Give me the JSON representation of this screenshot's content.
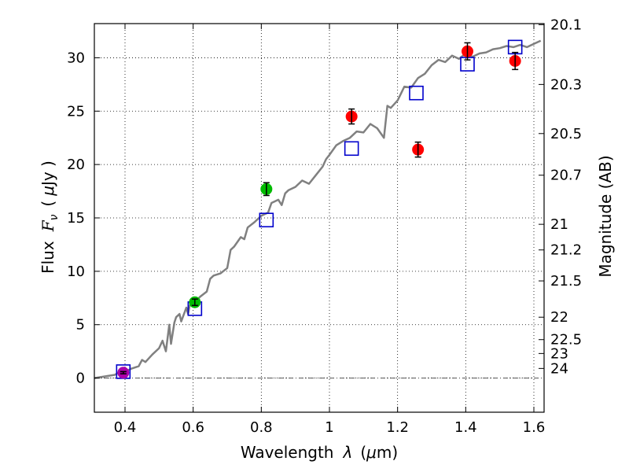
{
  "chart_data": {
    "type": "scatter",
    "title": "",
    "xlabel_prefix": "Wavelength",
    "xlabel_symbol": "λ",
    "xlabel_unit_open": "(",
    "xlabel_unit_mu": "μ",
    "xlabel_unit_rest": "m)",
    "ylabel_prefix": "Flux",
    "ylabel_symbol": "F",
    "ylabel_sub": "ν",
    "ylabel_unit_open": "(",
    "ylabel_unit_mu": "μ",
    "ylabel_unit_rest": "Jy )",
    "y2label": "Magnitude (AB)",
    "xlim": [
      0.31,
      1.63
    ],
    "ylim": [
      -3.2,
      33.2
    ],
    "grid": true,
    "x_ticks": [
      0.4,
      0.6,
      0.8,
      1.0,
      1.2,
      1.4,
      1.6
    ],
    "x_tick_labels": [
      "0.4",
      "0.6",
      "0.8",
      "1",
      "1.2",
      "1.4",
      "1.6"
    ],
    "y_ticks": [
      0,
      5,
      10,
      15,
      20,
      25,
      30
    ],
    "y_tick_labels": [
      "0",
      "5",
      "10",
      "15",
      "20",
      "25",
      "30"
    ],
    "y2_ticks": [
      {
        "label": "20.1",
        "flux": 33.1
      },
      {
        "label": "20.3",
        "flux": 27.5
      },
      {
        "label": "20.5",
        "flux": 22.9
      },
      {
        "label": "20.7",
        "flux": 19.0
      },
      {
        "label": "21",
        "flux": 14.4
      },
      {
        "label": "21.2",
        "flux": 12.0
      },
      {
        "label": "21.5",
        "flux": 9.1
      },
      {
        "label": "22",
        "flux": 5.7
      },
      {
        "label": "22.5",
        "flux": 3.6
      },
      {
        "label": "23",
        "flux": 2.3
      },
      {
        "label": "24",
        "flux": 0.9
      }
    ],
    "reference_line_y": 0,
    "series": [
      {
        "name": "model-spectrum",
        "type": "line",
        "color": "#808080",
        "x": [
          0.31,
          0.33,
          0.35,
          0.37,
          0.38,
          0.4,
          0.42,
          0.44,
          0.45,
          0.46,
          0.48,
          0.5,
          0.51,
          0.52,
          0.53,
          0.535,
          0.545,
          0.55,
          0.56,
          0.565,
          0.58,
          0.585,
          0.59,
          0.6,
          0.62,
          0.64,
          0.65,
          0.66,
          0.68,
          0.7,
          0.71,
          0.72,
          0.74,
          0.75,
          0.76,
          0.78,
          0.8,
          0.82,
          0.83,
          0.85,
          0.86,
          0.87,
          0.88,
          0.9,
          0.92,
          0.94,
          0.96,
          0.98,
          0.99,
          1.0,
          1.02,
          1.04,
          1.06,
          1.08,
          1.1,
          1.12,
          1.14,
          1.16,
          1.17,
          1.18,
          1.2,
          1.22,
          1.24,
          1.26,
          1.28,
          1.3,
          1.32,
          1.34,
          1.36,
          1.38,
          1.4,
          1.42,
          1.44,
          1.46,
          1.48,
          1.5,
          1.52,
          1.54,
          1.56,
          1.58,
          1.6,
          1.62
        ],
        "values": [
          0.0,
          0.1,
          0.2,
          0.3,
          0.5,
          0.6,
          0.9,
          1.1,
          1.7,
          1.5,
          2.2,
          2.8,
          3.5,
          2.5,
          5.0,
          3.2,
          5.2,
          5.7,
          6.0,
          5.3,
          6.6,
          6.0,
          6.8,
          6.9,
          7.6,
          8.1,
          9.3,
          9.6,
          9.8,
          10.3,
          12.0,
          12.3,
          13.2,
          13.0,
          14.1,
          14.6,
          15.2,
          15.5,
          16.4,
          16.7,
          16.2,
          17.3,
          17.6,
          17.9,
          18.5,
          18.2,
          19.0,
          19.8,
          20.5,
          20.9,
          21.8,
          22.2,
          22.5,
          23.1,
          23.0,
          23.8,
          23.4,
          22.5,
          25.5,
          25.3,
          26.0,
          27.3,
          27.2,
          28.1,
          28.5,
          29.3,
          29.8,
          29.6,
          30.2,
          29.9,
          30.4,
          30.1,
          30.4,
          30.5,
          30.8,
          30.9,
          31.1,
          31.0,
          31.2,
          31.0,
          31.3,
          31.6
        ]
      },
      {
        "name": "model-photometry",
        "type": "scatter",
        "marker": "square-open",
        "color": "#0000cc",
        "x": [
          0.395,
          0.605,
          0.815,
          1.065,
          1.255,
          1.405,
          1.545
        ],
        "values": [
          0.6,
          6.5,
          14.8,
          21.5,
          26.7,
          29.4,
          31.0
        ]
      },
      {
        "name": "observed-photometry",
        "type": "scatter",
        "marker": "circle-filled",
        "x": [
          0.395,
          0.605,
          0.815,
          1.065,
          1.26,
          1.405,
          1.545
        ],
        "values": [
          0.5,
          7.1,
          17.7,
          24.5,
          21.4,
          30.6,
          29.7
        ],
        "errors": [
          0.1,
          0.3,
          0.6,
          0.7,
          0.7,
          0.8,
          0.8
        ],
        "colors": [
          "#aa00aa",
          "#00bb00",
          "#00bb00",
          "#ff0000",
          "#ff0000",
          "#ff0000",
          "#ff0000"
        ]
      }
    ]
  }
}
